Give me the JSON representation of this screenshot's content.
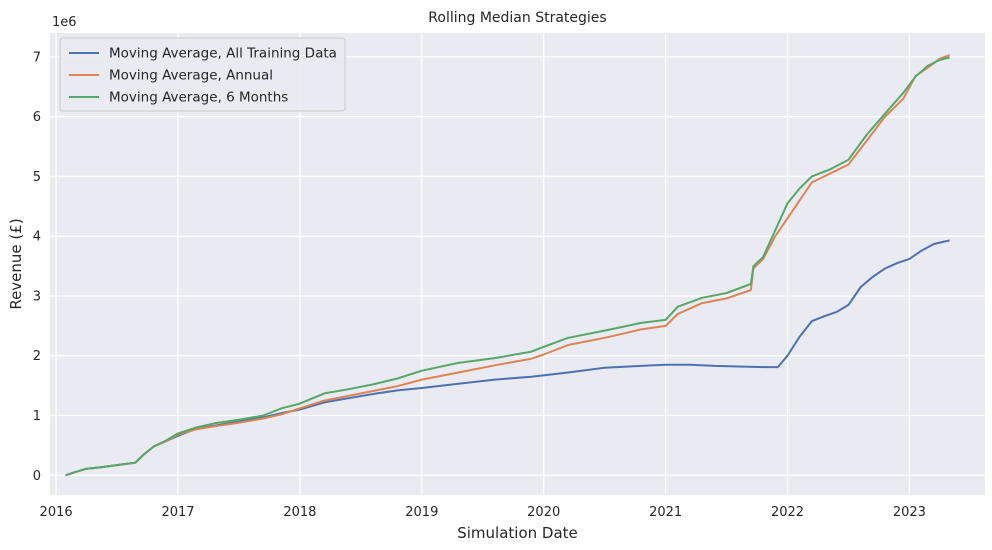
{
  "chart_data": {
    "type": "line",
    "title": "Rolling Median Strategies",
    "xlabel": "Simulation Date",
    "ylabel": "Revenue (£)",
    "y_offset_label": "1e6",
    "xlim": [
      2015.95,
      2023.62
    ],
    "ylim": [
      -0.33,
      7.4
    ],
    "x_ticks": [
      2016,
      2017,
      2018,
      2019,
      2020,
      2021,
      2022,
      2023
    ],
    "x_tick_labels": [
      "2016",
      "2017",
      "2018",
      "2019",
      "2020",
      "2021",
      "2022",
      "2023"
    ],
    "y_ticks": [
      0,
      1,
      2,
      3,
      4,
      5,
      6,
      7
    ],
    "y_tick_labels": [
      "0",
      "1",
      "2",
      "3",
      "4",
      "5",
      "6",
      "7"
    ],
    "grid": true,
    "legend_position": "top-left",
    "series": [
      {
        "name": "Moving Average, All Training Data",
        "color": "#4c72b0",
        "x": [
          2016.08,
          2016.15,
          2016.25,
          2016.35,
          2016.5,
          2016.65,
          2016.72,
          2016.8,
          2016.9,
          2017.0,
          2017.15,
          2017.3,
          2017.5,
          2017.7,
          2017.85,
          2018.0,
          2018.2,
          2018.4,
          2018.6,
          2018.8,
          2019.0,
          2019.3,
          2019.6,
          2019.9,
          2020.2,
          2020.5,
          2020.8,
          2021.0,
          2021.2,
          2021.4,
          2021.6,
          2021.8,
          2021.92,
          2022.0,
          2022.1,
          2022.2,
          2022.3,
          2022.4,
          2022.5,
          2022.6,
          2022.7,
          2022.8,
          2022.9,
          2023.0,
          2023.1,
          2023.2,
          2023.33
        ],
        "y": [
          0.0,
          0.05,
          0.11,
          0.13,
          0.17,
          0.21,
          0.35,
          0.48,
          0.57,
          0.66,
          0.78,
          0.83,
          0.9,
          0.97,
          1.04,
          1.1,
          1.22,
          1.29,
          1.36,
          1.42,
          1.46,
          1.53,
          1.6,
          1.65,
          1.72,
          1.8,
          1.83,
          1.85,
          1.85,
          1.83,
          1.82,
          1.81,
          1.81,
          2.0,
          2.32,
          2.58,
          2.66,
          2.73,
          2.85,
          3.15,
          3.32,
          3.46,
          3.55,
          3.62,
          3.76,
          3.87,
          3.93
        ]
      },
      {
        "name": "Moving Average, Annual",
        "color": "#dd8452",
        "x": [
          2016.08,
          2016.15,
          2016.25,
          2016.35,
          2016.5,
          2016.65,
          2016.72,
          2016.8,
          2016.9,
          2017.0,
          2017.15,
          2017.3,
          2017.5,
          2017.7,
          2017.85,
          2018.0,
          2018.2,
          2018.4,
          2018.6,
          2018.8,
          2019.0,
          2019.3,
          2019.6,
          2019.9,
          2020.0,
          2020.2,
          2020.5,
          2020.8,
          2021.0,
          2021.1,
          2021.3,
          2021.5,
          2021.7,
          2021.72,
          2021.8,
          2021.9,
          2022.0,
          2022.1,
          2022.2,
          2022.35,
          2022.5,
          2022.65,
          2022.8,
          2022.95,
          2023.05,
          2023.15,
          2023.25,
          2023.33
        ],
        "y": [
          0.0,
          0.05,
          0.11,
          0.13,
          0.17,
          0.21,
          0.35,
          0.48,
          0.57,
          0.68,
          0.77,
          0.82,
          0.88,
          0.95,
          1.02,
          1.12,
          1.25,
          1.33,
          1.41,
          1.49,
          1.6,
          1.72,
          1.84,
          1.95,
          2.02,
          2.18,
          2.3,
          2.44,
          2.5,
          2.7,
          2.88,
          2.96,
          3.1,
          3.46,
          3.62,
          4.0,
          4.3,
          4.6,
          4.9,
          5.05,
          5.2,
          5.6,
          6.0,
          6.3,
          6.68,
          6.82,
          6.97,
          7.03
        ]
      },
      {
        "name": "Moving Average, 6 Months",
        "color": "#55a868",
        "x": [
          2016.08,
          2016.15,
          2016.25,
          2016.35,
          2016.5,
          2016.65,
          2016.72,
          2016.8,
          2016.9,
          2017.0,
          2017.15,
          2017.3,
          2017.5,
          2017.7,
          2017.85,
          2018.0,
          2018.2,
          2018.4,
          2018.6,
          2018.8,
          2019.0,
          2019.3,
          2019.6,
          2019.9,
          2020.0,
          2020.2,
          2020.5,
          2020.8,
          2021.0,
          2021.1,
          2021.3,
          2021.5,
          2021.7,
          2021.72,
          2021.8,
          2021.9,
          2022.0,
          2022.1,
          2022.2,
          2022.35,
          2022.5,
          2022.65,
          2022.8,
          2022.95,
          2023.05,
          2023.15,
          2023.25,
          2023.33
        ],
        "y": [
          0.0,
          0.05,
          0.11,
          0.13,
          0.17,
          0.21,
          0.35,
          0.48,
          0.58,
          0.7,
          0.8,
          0.87,
          0.93,
          1.0,
          1.12,
          1.2,
          1.37,
          1.44,
          1.52,
          1.62,
          1.75,
          1.88,
          1.96,
          2.07,
          2.15,
          2.3,
          2.42,
          2.55,
          2.6,
          2.82,
          2.97,
          3.05,
          3.2,
          3.5,
          3.65,
          4.1,
          4.55,
          4.8,
          5.0,
          5.12,
          5.28,
          5.7,
          6.05,
          6.4,
          6.67,
          6.85,
          6.95,
          6.99
        ]
      }
    ]
  },
  "colors": {
    "plot_background": "#eaeaf2",
    "grid": "#ffffff",
    "text": "#262626"
  }
}
